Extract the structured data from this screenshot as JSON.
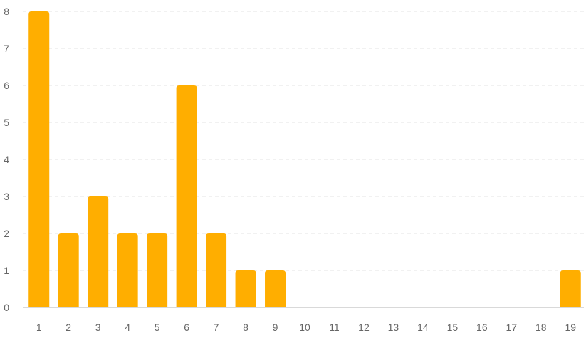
{
  "chart_data": {
    "type": "bar",
    "title": "",
    "xlabel": "",
    "ylabel": "",
    "categories": [
      "1",
      "2",
      "3",
      "4",
      "5",
      "6",
      "7",
      "8",
      "9",
      "10",
      "11",
      "12",
      "13",
      "14",
      "15",
      "16",
      "17",
      "18",
      "19"
    ],
    "values": [
      8,
      2,
      3,
      2,
      2,
      6,
      2,
      1,
      1,
      0,
      0,
      0,
      0,
      0,
      0,
      0,
      0,
      0,
      1
    ],
    "ylim": [
      0,
      8
    ],
    "yticks": [
      0,
      1,
      2,
      3,
      4,
      5,
      6,
      7,
      8
    ],
    "grid": true,
    "legend": "none",
    "colors": {
      "bar": "#ffae00",
      "grid": "#e3e3e3",
      "tick_text": "#666666"
    }
  }
}
